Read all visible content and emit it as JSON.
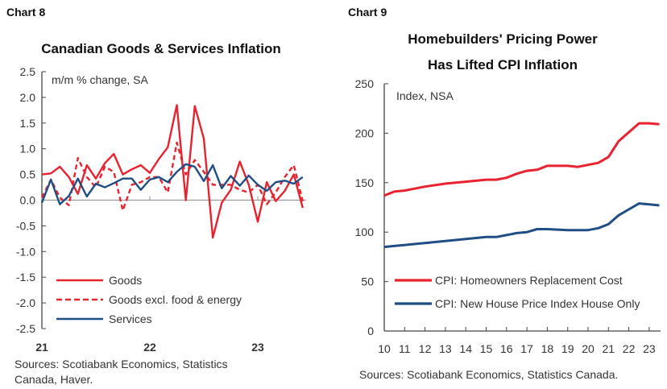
{
  "chart_data": [
    {
      "id": "chart8",
      "type": "line",
      "chart_number": "Chart 8",
      "title": "Canadian Goods & Services Inflation",
      "unit_label": "m/m % change, SA",
      "ylim": [
        -2.5,
        2.5
      ],
      "yticks": [
        "2.5",
        "2.0",
        "1.5",
        "1.0",
        "0.5",
        "0.0",
        "-0.5",
        "-1.0",
        "-1.5",
        "-2.0",
        "-2.5"
      ],
      "ytick_values": [
        2.5,
        2.0,
        1.5,
        1.0,
        0.5,
        0.0,
        -0.5,
        -1.0,
        -1.5,
        -2.0,
        -2.5
      ],
      "xticks": [
        "21",
        "22",
        "23"
      ],
      "x_start": "2021-01",
      "x_frequency": "monthly",
      "grid": false,
      "legend_placement": "bottom-left",
      "source": [
        "Sources: Scotiabank Economics, Statistics",
        "Canada, Haver."
      ],
      "series": [
        {
          "name": "Goods",
          "color": "#e8222e",
          "style": "solid",
          "values": [
            0.5,
            0.52,
            0.65,
            0.45,
            0.12,
            0.68,
            0.42,
            0.72,
            0.9,
            0.5,
            0.6,
            0.68,
            0.53,
            0.8,
            1.03,
            1.85,
            0.0,
            1.83,
            1.2,
            -0.73,
            -0.05,
            0.2,
            0.75,
            0.3,
            -0.42,
            0.35,
            -0.02,
            0.18,
            0.5,
            -0.15
          ]
        },
        {
          "name": "Goods excl. food & energy",
          "color": "#e8222e",
          "style": "dashed",
          "values": [
            0.05,
            0.4,
            0.05,
            -0.1,
            0.82,
            0.45,
            0.25,
            0.65,
            0.55,
            -0.2,
            0.3,
            0.35,
            0.45,
            0.45,
            0.15,
            1.12,
            0.5,
            0.78,
            0.55,
            0.3,
            0.3,
            0.3,
            0.2,
            0.15,
            0.3,
            -0.08,
            0.15,
            0.45,
            0.68,
            -0.02
          ]
        },
        {
          "name": "Services",
          "color": "#1f4e85",
          "style": "solid",
          "values": [
            -0.05,
            0.4,
            -0.08,
            0.08,
            0.42,
            0.07,
            0.32,
            0.25,
            0.33,
            0.42,
            0.42,
            0.2,
            0.4,
            0.45,
            0.35,
            0.55,
            0.7,
            0.65,
            0.37,
            0.68,
            0.23,
            0.47,
            0.28,
            0.48,
            0.3,
            0.18,
            0.35,
            0.38,
            0.32,
            0.45
          ]
        }
      ]
    },
    {
      "id": "chart9",
      "type": "line",
      "chart_number": "Chart 9",
      "title": [
        "Homebuilders' Pricing Power",
        "Has Lifted CPI Inflation"
      ],
      "unit_label": "Index, NSA",
      "ylim": [
        0,
        250
      ],
      "yticks": [
        "250",
        "200",
        "150",
        "100",
        "50",
        "0"
      ],
      "ytick_values": [
        250,
        200,
        150,
        100,
        50,
        0
      ],
      "xticks": [
        "10",
        "11",
        "12",
        "13",
        "14",
        "15",
        "16",
        "17",
        "18",
        "19",
        "20",
        "21",
        "22",
        "23"
      ],
      "grid": false,
      "legend_placement": "bottom",
      "source": [
        "Sources: Scotiabank Economics, Statistics Canada."
      ],
      "x": [
        2010,
        2010.5,
        2011,
        2012,
        2013,
        2014,
        2015,
        2015.5,
        2016,
        2016.5,
        2017,
        2017.5,
        2018,
        2019,
        2019.5,
        2020,
        2020.5,
        2021,
        2021.5,
        2022,
        2022.5,
        2023,
        2023.5
      ],
      "series": [
        {
          "name": "CPI: Homeowners Replacement Cost",
          "color": "#e8222e",
          "values": [
            137,
            141,
            142,
            146,
            149,
            151,
            153,
            153,
            155,
            159,
            162,
            163,
            167,
            167,
            166,
            168,
            170,
            176,
            192,
            201,
            210,
            210,
            209
          ]
        },
        {
          "name": "CPI: New House Price Index House Only",
          "color": "#1f4e85",
          "values": [
            85,
            86,
            87,
            89,
            91,
            93,
            95,
            95,
            97,
            99,
            100,
            103,
            103,
            102,
            102,
            102,
            104,
            108,
            117,
            123,
            129,
            128,
            127
          ]
        }
      ]
    }
  ]
}
